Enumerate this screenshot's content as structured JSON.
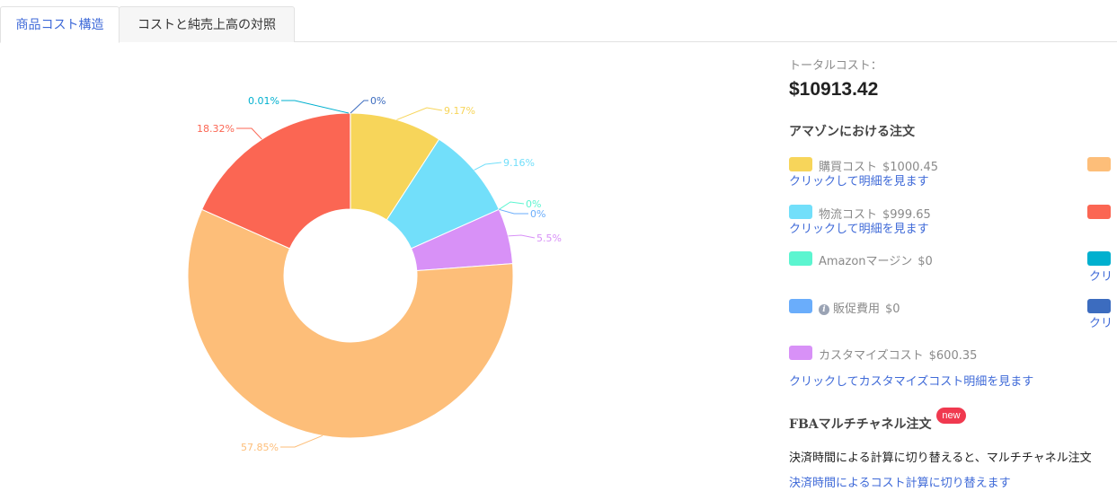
{
  "tabs": [
    {
      "label": "商品コスト構造",
      "active": true
    },
    {
      "label": "コストと純売上高の対照",
      "active": false
    }
  ],
  "summary": {
    "total_label": "トータルコスト：",
    "total_value": "$10913.42",
    "amazon_orders_title": "アマゾンにおける注文"
  },
  "legend_items": [
    {
      "label": "購買コスト",
      "value": "$1000.45",
      "color": "#f7d55a",
      "link": "クリックして明細を見ます"
    },
    {
      "label": "物流コスト",
      "value": "$999.65",
      "color": "#72dffa",
      "link": "クリックして明細を見ます"
    },
    {
      "label": "Amazonマージン",
      "value": "$0",
      "color": "#5cf5d0",
      "link": ""
    },
    {
      "label": "販促費用",
      "value": "$0",
      "color": "#6aadfb",
      "link": ""
    },
    {
      "label": "カスタマイズコスト",
      "value": "$600.35",
      "color": "#d891f7",
      "link": "クリックしてカスタマイズコスト明細を見ます"
    }
  ],
  "right_legend": [
    {
      "color": "#fdbe79",
      "link": ""
    },
    {
      "color": "#fb6653",
      "link": ""
    },
    {
      "color": "#00b0cf",
      "link": "クリ"
    },
    {
      "color": "#3c6cbf",
      "link": "クリ"
    }
  ],
  "fba": {
    "title": "FBAマルチチャネル注文",
    "badge": "new",
    "note": "決済時間による計算に切り替えると、マルチチャネル注文",
    "switch_link": "決済時間によるコスト計算に切り替えます"
  },
  "chart_data": {
    "type": "pie",
    "inner_radius_ratio": 0.41,
    "slices": [
      {
        "value": 9.17,
        "label": "9.17%",
        "color": "#f7d55a"
      },
      {
        "value": 9.16,
        "label": "9.16%",
        "color": "#72dffa"
      },
      {
        "value": 0,
        "label": "0%",
        "color": "#5cf5d0"
      },
      {
        "value": 0,
        "label": "0%",
        "color": "#6aadfb"
      },
      {
        "value": 5.5,
        "label": "5.5%",
        "color": "#d891f7"
      },
      {
        "value": 57.85,
        "label": "57.85%",
        "color": "#fdbe79"
      },
      {
        "value": 18.32,
        "label": "18.32%",
        "color": "#fb6653"
      },
      {
        "value": 0.01,
        "label": "0.01%",
        "color": "#00b0cf"
      },
      {
        "value": 0,
        "label": "0%",
        "color": "#3c6cbf"
      }
    ]
  }
}
